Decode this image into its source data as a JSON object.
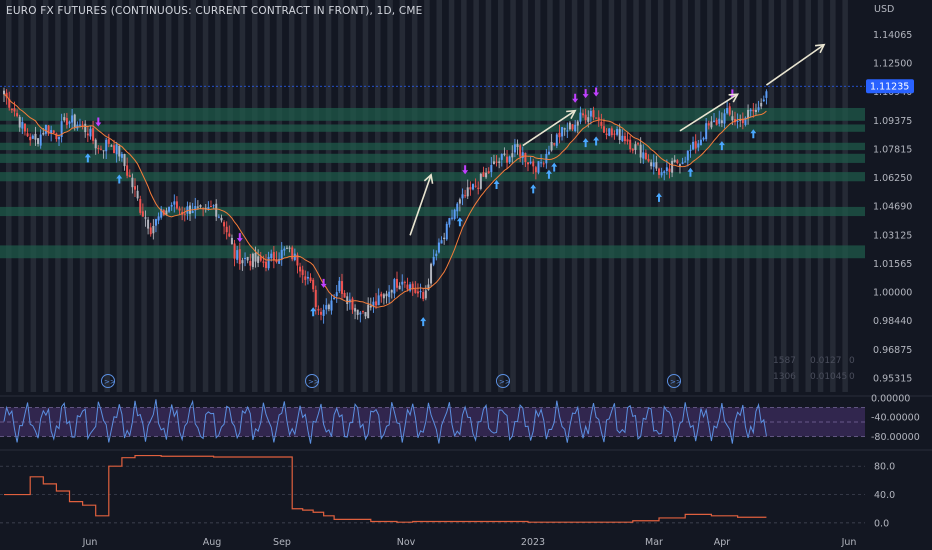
{
  "chart_title": "EURO FX FUTURES (CONTINUOUS: CURRENT CONTRACT IN FRONT), 1D, CME",
  "currency": "USD",
  "last_price_label": "1.11235",
  "stats_rows": [
    {
      "a": "1587",
      "b": "0.0127",
      "c": "0"
    },
    {
      "a": "1306",
      "b": "0.01045",
      "c": "0"
    }
  ],
  "x_labels": [
    "Jun",
    "Aug",
    "Sep",
    "Nov",
    "2023",
    "Mar",
    "Apr",
    "Jun"
  ],
  "colors": {
    "background": "#131722",
    "up": "#5b9cf6",
    "down": "#ef5350",
    "neutral": "#b2b5be",
    "ma": "#f57c3a",
    "zone": "#1f5a4a",
    "osc": "#5b8fe0",
    "osc_band": "#3a2a5a",
    "stoch": "#e0603e",
    "badge": "#2962ff",
    "arrow_up": "#4aa8ff",
    "marker": "#c040ff"
  },
  "chart_data": [
    {
      "type": "candlestick",
      "title": "EURO FX FUTURES (CONTINUOUS: CURRENT CONTRACT IN FRONT), 1D, CME",
      "ylabel": "USD",
      "y_ticks": [
        "1.14065",
        "1.12500",
        "1.10940",
        "1.09375",
        "1.07815",
        "1.06250",
        "1.04690",
        "1.03125",
        "1.01565",
        "1.00000",
        "0.98440",
        "0.96875",
        "0.95315"
      ],
      "ylim": [
        0.9455,
        1.1485
      ],
      "x_ticks": [
        "Jun",
        "Aug",
        "Sep",
        "Nov",
        "2023",
        "Mar",
        "Apr",
        "Jun"
      ],
      "last_price": 1.11235,
      "green_zones": [
        [
          1.0935,
          1.1005
        ],
        [
          1.0875,
          1.0915
        ],
        [
          1.0775,
          1.0815
        ],
        [
          1.0705,
          1.0755
        ],
        [
          1.0605,
          1.0655
        ],
        [
          1.0415,
          1.0465
        ],
        [
          1.0185,
          1.0255
        ]
      ],
      "close_path": [
        [
          0,
          1.108
        ],
        [
          4,
          1.099
        ],
        [
          8,
          1.087
        ],
        [
          12,
          1.082
        ],
        [
          16,
          1.09
        ],
        [
          20,
          1.086
        ],
        [
          24,
          1.094
        ],
        [
          28,
          1.092
        ],
        [
          32,
          1.088
        ],
        [
          36,
          1.078
        ],
        [
          40,
          1.082
        ],
        [
          44,
          1.076
        ],
        [
          48,
          1.062
        ],
        [
          52,
          1.046
        ],
        [
          56,
          1.035
        ],
        [
          60,
          1.042
        ],
        [
          64,
          1.048
        ],
        [
          68,
          1.044
        ],
        [
          72,
          1.046
        ],
        [
          76,
          1.042
        ],
        [
          80,
          1.047
        ],
        [
          84,
          1.038
        ],
        [
          88,
          1.02
        ],
        [
          92,
          1.018
        ],
        [
          96,
          1.017
        ],
        [
          100,
          1.016
        ],
        [
          104,
          1.02
        ],
        [
          108,
          1.023
        ],
        [
          112,
          1.017
        ],
        [
          116,
          1.008
        ],
        [
          120,
          0.99
        ],
        [
          124,
          0.994
        ],
        [
          128,
          1.004
        ],
        [
          132,
          0.995
        ],
        [
          136,
          0.989
        ],
        [
          140,
          0.992
        ],
        [
          144,
          0.996
        ],
        [
          148,
          1.003
        ],
        [
          152,
          1.008
        ],
        [
          156,
          1.002
        ],
        [
          160,
          0.996
        ],
        [
          164,
          1.018
        ],
        [
          168,
          1.03
        ],
        [
          172,
          1.045
        ],
        [
          176,
          1.052
        ],
        [
          180,
          1.058
        ],
        [
          184,
          1.064
        ],
        [
          188,
          1.071
        ],
        [
          192,
          1.074
        ],
        [
          196,
          1.078
        ],
        [
          200,
          1.072
        ],
        [
          204,
          1.068
        ],
        [
          208,
          1.079
        ],
        [
          212,
          1.086
        ],
        [
          216,
          1.09
        ],
        [
          220,
          1.095
        ],
        [
          224,
          1.099
        ],
        [
          228,
          1.092
        ],
        [
          232,
          1.086
        ],
        [
          236,
          1.086
        ],
        [
          240,
          1.08
        ],
        [
          244,
          1.076
        ],
        [
          248,
          1.069
        ],
        [
          252,
          1.063
        ],
        [
          256,
          1.07
        ],
        [
          260,
          1.074
        ],
        [
          264,
          1.08
        ],
        [
          268,
          1.089
        ],
        [
          272,
          1.093
        ],
        [
          276,
          1.097
        ],
        [
          280,
          1.093
        ],
        [
          284,
          1.097
        ],
        [
          288,
          1.1
        ],
        [
          291,
          1.1123
        ]
      ],
      "moving_average": {
        "color": "#f57c3a"
      },
      "annotation_arrows": [
        {
          "from": [
            155,
            1.031
          ],
          "to": [
            163,
            1.064
          ]
        },
        {
          "from": [
            198,
            1.08
          ],
          "to": [
            218,
            1.099
          ]
        },
        {
          "from": [
            258,
            1.088
          ],
          "to": [
            280,
            1.108
          ]
        },
        {
          "from": [
            291,
            1.113
          ],
          "to": [
            313,
            1.135
          ]
        }
      ]
    },
    {
      "type": "line",
      "name": "oscillator",
      "y_ticks": [
        "0.00000",
        "-40.00000",
        "-80.00000"
      ],
      "ylim": [
        -100,
        0
      ],
      "band": [
        -20,
        -80
      ]
    },
    {
      "type": "line",
      "name": "stochastic",
      "y_ticks": [
        "80.0",
        "40.0",
        "0.0"
      ],
      "ylim": [
        -10,
        100
      ],
      "x": [
        0,
        5,
        10,
        15,
        20,
        25,
        30,
        35,
        40,
        45,
        50,
        55,
        60,
        80,
        100,
        110,
        114,
        118,
        122,
        126,
        140,
        150,
        156,
        200,
        240,
        250,
        260,
        270,
        280,
        291
      ],
      "y": [
        40,
        40,
        65,
        55,
        45,
        30,
        25,
        10,
        80,
        92,
        95,
        95,
        94,
        93,
        93,
        20,
        18,
        15,
        10,
        5,
        2,
        1,
        2,
        1,
        3,
        7,
        12,
        10,
        8,
        8
      ]
    }
  ]
}
